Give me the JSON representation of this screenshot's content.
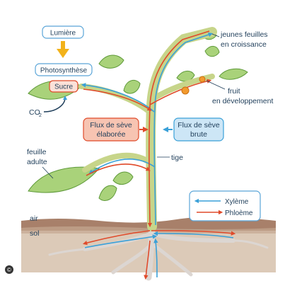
{
  "labels": {
    "lumiere": "Lumière",
    "photosynthese": "Photosynthèse",
    "sucre": "Sucre",
    "co2_main": "CO",
    "co2_sub": "2",
    "jeunes_line1": "jeunes feuilles",
    "jeunes_line2": "en croissance",
    "fruit_line1": "fruit",
    "fruit_line2": "en développement",
    "flux_elab_line1": "Flux de sève",
    "flux_elab_line2": "élaborée",
    "flux_brute_line1": "Flux de sève",
    "flux_brute_line2": "brute",
    "feuille_line1": "feuille",
    "feuille_line2": "adulte",
    "tige": "tige",
    "air": "air",
    "sol": "sol",
    "copyright": "©"
  },
  "legend": {
    "xyleme": "Xylème",
    "phloeme": "Phloème"
  },
  "colors": {
    "xylem": "#3aa0d8",
    "phloem": "#e04a2a",
    "leaf": "#a9d27a",
    "leaf_dark": "#5f9a3a",
    "soil": "#b5907a",
    "box_border": "#5aa5d8",
    "sun_arrow": "#f2b21a"
  }
}
